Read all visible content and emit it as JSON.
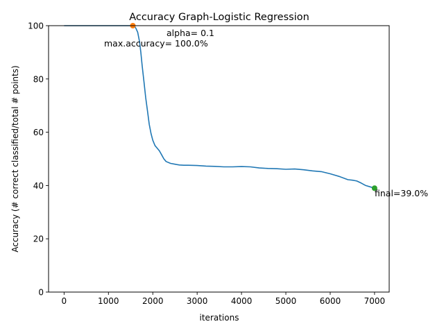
{
  "chart_data": {
    "type": "line",
    "title": "Accuracy Graph-Logistic Regression",
    "xlabel": "iterations",
    "ylabel": "Accuracy (# correct classified/total # points)",
    "xlim": [
      -350,
      7330
    ],
    "ylim": [
      0,
      100
    ],
    "xticks": [
      0,
      1000,
      2000,
      3000,
      4000,
      5000,
      6000,
      7000
    ],
    "yticks": [
      0,
      20,
      40,
      60,
      80,
      100
    ],
    "grid": false,
    "series": [
      {
        "color": "#1f77b4",
        "points": [
          [
            0,
            100
          ],
          [
            1500,
            100
          ],
          [
            1580,
            100
          ],
          [
            1620,
            99
          ],
          [
            1660,
            97.5
          ],
          [
            1700,
            94
          ],
          [
            1730,
            90
          ],
          [
            1760,
            85
          ],
          [
            1800,
            79
          ],
          [
            1840,
            73
          ],
          [
            1880,
            68
          ],
          [
            1920,
            63
          ],
          [
            1960,
            59.5
          ],
          [
            2000,
            57
          ],
          [
            2050,
            55
          ],
          [
            2100,
            54
          ],
          [
            2150,
            53
          ],
          [
            2200,
            51.5
          ],
          [
            2250,
            50
          ],
          [
            2300,
            49
          ],
          [
            2400,
            48.3
          ],
          [
            2500,
            48
          ],
          [
            2600,
            47.7
          ],
          [
            2700,
            47.6
          ],
          [
            2800,
            47.6
          ],
          [
            3000,
            47.5
          ],
          [
            3200,
            47.3
          ],
          [
            3400,
            47.2
          ],
          [
            3600,
            47
          ],
          [
            3800,
            47
          ],
          [
            4000,
            47.1
          ],
          [
            4200,
            47
          ],
          [
            4400,
            46.6
          ],
          [
            4600,
            46.4
          ],
          [
            4800,
            46.3
          ],
          [
            5000,
            46.1
          ],
          [
            5200,
            46.2
          ],
          [
            5400,
            45.9
          ],
          [
            5600,
            45.5
          ],
          [
            5800,
            45.2
          ],
          [
            6000,
            44.4
          ],
          [
            6200,
            43.4
          ],
          [
            6400,
            42.2
          ],
          [
            6500,
            42
          ],
          [
            6600,
            41.7
          ],
          [
            6700,
            40.9
          ],
          [
            6800,
            40
          ],
          [
            6900,
            39.5
          ],
          [
            7000,
            39
          ]
        ]
      }
    ],
    "markers": [
      {
        "name": "max",
        "x": 1550,
        "y": 100,
        "color": "#ff7f0e"
      },
      {
        "name": "final",
        "x": 7000,
        "y": 39,
        "color": "#2ca02c"
      }
    ],
    "annotations": {
      "alpha": "alpha= 0.1",
      "max_accuracy": "max.accuracy= 100.0%",
      "final": "final=39.0%"
    }
  }
}
